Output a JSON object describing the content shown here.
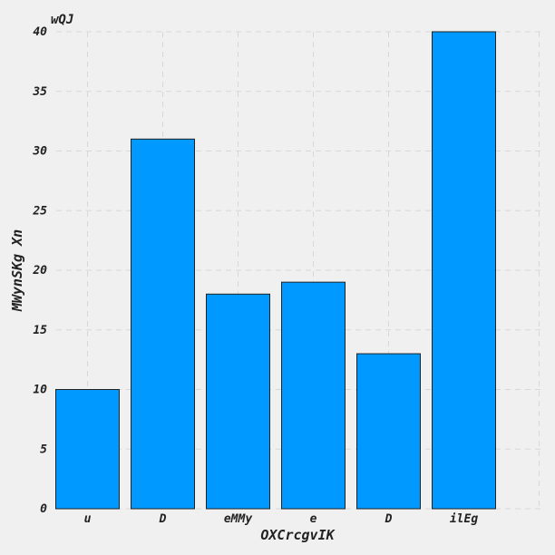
{
  "chart_data": {
    "type": "bar",
    "title": "wQJ",
    "xlabel": "OXCrcgvIK",
    "ylabel": "MWynSKg Xn",
    "categories": [
      "u",
      "D",
      "eMMy",
      "e",
      "D",
      "ilEg"
    ],
    "values": [
      10,
      31,
      18,
      19,
      13,
      40
    ],
    "ylim": [
      0,
      40
    ],
    "yticks": [
      0,
      5,
      10,
      15,
      20,
      25,
      30,
      35,
      40
    ],
    "grid": true,
    "bar_color": "#0099ff",
    "background_color": "#f0f0f0"
  }
}
